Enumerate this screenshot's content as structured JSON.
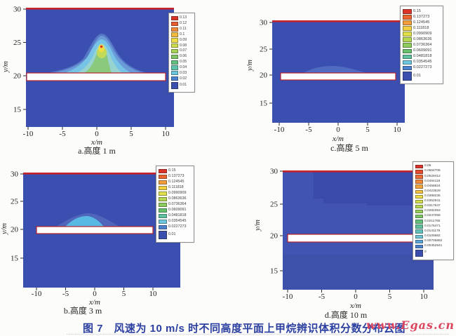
{
  "figure": {
    "caption": "图 7　风速为 10 m/s 时不同高度平面上甲烷辨识体积分数分布云图",
    "watermark": "www.Egas.cn"
  },
  "colors": {
    "plot_background": "#3b4fb0",
    "plot_background_d": "#4154b2",
    "dark_region_d": "#3a4aab",
    "obstacle_bar_fill": "#ffffff",
    "obstacle_bar_border": "#b3262e",
    "top_boundary_line": "#c5232b",
    "caption_text": "#2b3fa0",
    "watermark_text": "#da4660"
  },
  "panels": [
    {
      "id": "a",
      "caption": "a.高度 1 m",
      "xlabel": "x/m",
      "ylabel": "y/m",
      "x_ticks": [
        "-10",
        "-5",
        "0",
        "5",
        "10"
      ],
      "y_ticks": [
        "30",
        "25",
        "20",
        "15"
      ],
      "legend": {
        "values": [
          "0.13",
          "0.12",
          "0.11",
          "0.1",
          "0.09",
          "0.08",
          "0.07",
          "0.06",
          "0.05",
          "0.04",
          "0.03",
          "0.02",
          "0.01"
        ],
        "colors": [
          "#dd3227",
          "#e95c2f",
          "#f08a39",
          "#f2bb3e",
          "#f0dc45",
          "#cede4c",
          "#a6d356",
          "#80c763",
          "#63c07e",
          "#5ec3ab",
          "#6ac6de",
          "#4b82cd",
          "#3a4fae"
        ]
      }
    },
    {
      "id": "b",
      "caption": "b.高度 3 m",
      "xlabel": "x/m",
      "ylabel": "y/m",
      "x_ticks": [
        "-10",
        "-5",
        "0",
        "5",
        "10"
      ],
      "y_ticks": [
        "30",
        "25",
        "20",
        "15"
      ],
      "legend": {
        "values": [
          "0.15",
          "0.137273",
          "0.124545",
          "0.111818",
          "0.0990909",
          "0.0863636",
          "0.0736364",
          "0.0609091",
          "0.0481818",
          "0.0354545",
          "0.0227273",
          "0.01"
        ],
        "colors": [
          "#dd3227",
          "#ea642f",
          "#f29c3b",
          "#f2d03f",
          "#e0e04a",
          "#b5d851",
          "#8ccb5c",
          "#67c06c",
          "#5ec2a0",
          "#6cc7de",
          "#4b82cd",
          "#3a4fae"
        ]
      }
    },
    {
      "id": "c",
      "caption": "c.高度 5 m",
      "xlabel": "x/m",
      "ylabel": "y/m",
      "x_ticks": [
        "-10",
        "-5",
        "0",
        "5",
        "10"
      ],
      "y_ticks": [
        "30",
        "25",
        "20",
        "15"
      ],
      "legend": {
        "values": [
          "0.15",
          "0.137273",
          "0.124545",
          "0.111818",
          "0.0990909",
          "0.0863636",
          "0.0736364",
          "0.0609091",
          "0.0481818",
          "0.0354545",
          "0.0227273",
          "0.01"
        ],
        "colors": [
          "#dd3227",
          "#ea642f",
          "#f29c3b",
          "#f2d03f",
          "#e0e04a",
          "#b5d851",
          "#8ccb5c",
          "#67c06c",
          "#5ec2a0",
          "#6cc7de",
          "#4b82cd",
          "#3a4fae"
        ]
      }
    },
    {
      "id": "d",
      "caption": "d.高度 10 m",
      "xlabel": "x/m",
      "ylabel": "y/m",
      "x_ticks": [
        "-10",
        "-5",
        "0",
        "5",
        "10"
      ],
      "y_ticks": [
        "30",
        "25",
        "20",
        "15"
      ],
      "legend": {
        "values": [
          "0.06",
          "0.0564706",
          "0.0529412",
          "0.0494118",
          "0.0458824",
          "0.0423529",
          "0.0388235",
          "0.0352941",
          "0.0317647",
          "0.0282353",
          "0.0247059",
          "0.0211765",
          "0.0176471",
          "0.0141176",
          "0.0105882",
          "0.00705882",
          "0.00352941",
          "0"
        ],
        "colors": [
          "#dd3227",
          "#e74b2c",
          "#ee6a33",
          "#f18838",
          "#f3a53c",
          "#f3c340",
          "#eedd45",
          "#d3de4a",
          "#b5d851",
          "#96cf59",
          "#79c663",
          "#63c07d",
          "#5cc29b",
          "#62c4bd",
          "#6bc6da",
          "#57a5da",
          "#4b82cd",
          "#3a4fae"
        ]
      }
    }
  ],
  "chart_data": [
    {
      "type": "contour",
      "subplot": "a",
      "title": "a.高度 1 m",
      "xlabel": "x/m",
      "ylabel": "y/m",
      "xlim": [
        -10.5,
        11.5
      ],
      "ylim": [
        12.3,
        30.3
      ],
      "x_ticks": [
        -10,
        -5,
        0,
        5,
        10
      ],
      "y_ticks": [
        15,
        20,
        25,
        30
      ],
      "levels": [
        0.01,
        0.02,
        0.03,
        0.04,
        0.05,
        0.06,
        0.07,
        0.08,
        0.09,
        0.1,
        0.11,
        0.12,
        0.13
      ],
      "background_level": 0.01,
      "obstacle_bar": {
        "x": [
          -10,
          10
        ],
        "y": [
          19.6,
          20.7
        ]
      },
      "plume": {
        "apex": [
          0.7,
          25.5
        ],
        "base_x": [
          -7,
          6
        ],
        "base_y": 20.7,
        "peak_value": 0.13,
        "peak_location": [
          0.7,
          24.6
        ],
        "note": "bell-shaped plume above bar: blue→cyan→green→yellow core with small red maximum"
      }
    },
    {
      "type": "contour",
      "subplot": "b",
      "title": "b.高度 3 m",
      "xlabel": "x/m",
      "ylabel": "y/m",
      "xlim": [
        -11,
        16.5
      ],
      "ylim": [
        11.5,
        30.2
      ],
      "x_ticks": [
        -10,
        -5,
        0,
        5,
        10
      ],
      "y_ticks": [
        15,
        20,
        25,
        30
      ],
      "levels": [
        0.01,
        0.0227273,
        0.0354545,
        0.0481818,
        0.0609091,
        0.0736364,
        0.0863636,
        0.0990909,
        0.111818,
        0.124545,
        0.137273,
        0.15
      ],
      "background_level": 0.01,
      "obstacle_bar": {
        "x": [
          -10,
          10
        ],
        "y": [
          19.6,
          20.7
        ]
      },
      "plume": {
        "apex": [
          -1,
          22.6
        ],
        "base_x": [
          -6.5,
          4.5
        ],
        "base_y": 20.7,
        "peak_value": 0.0481818,
        "note": "small light-blue hump above bar, max level ~0.048"
      }
    },
    {
      "type": "contour",
      "subplot": "c",
      "title": "c.高度 5 m",
      "xlabel": "x/m",
      "ylabel": "y/m",
      "xlim": [
        -11.2,
        12.5
      ],
      "ylim": [
        11,
        30.4
      ],
      "x_ticks": [
        -10,
        -5,
        0,
        5,
        10
      ],
      "y_ticks": [
        15,
        20,
        25,
        30
      ],
      "levels": [
        0.01,
        0.0227273,
        0.0354545,
        0.0481818,
        0.0609091,
        0.0736364,
        0.0863636,
        0.0990909,
        0.111818,
        0.124545,
        0.137273,
        0.15
      ],
      "background_level": 0.01,
      "obstacle_bar": {
        "x": [
          -10,
          10
        ],
        "y": [
          19.6,
          20.7
        ]
      },
      "plume": {
        "apex": [
          -1.5,
          21.4
        ],
        "base_x": [
          -6.5,
          4
        ],
        "base_y": 20.7,
        "peak_value": 0.0227273,
        "note": "very faint low bump just above bar"
      }
    },
    {
      "type": "contour",
      "subplot": "d",
      "title": "d.高度 10 m",
      "xlabel": "x/m",
      "ylabel": "y/m",
      "xlim": [
        -10.7,
        11.5
      ],
      "ylim": [
        12.2,
        30.2
      ],
      "x_ticks": [
        -10,
        -5,
        0,
        5,
        10
      ],
      "y_ticks": [
        15,
        20,
        25,
        30
      ],
      "levels": [
        0,
        0.00352941,
        0.00705882,
        0.0105882,
        0.0141176,
        0.0176471,
        0.0211765,
        0.0247059,
        0.0282353,
        0.0317647,
        0.0352941,
        0.0388235,
        0.0423529,
        0.0458824,
        0.0494118,
        0.0529412,
        0.0564706,
        0.06
      ],
      "background_level": 0.00352941,
      "obstacle_bar": {
        "x": [
          -10,
          8.7
        ],
        "y": [
          19.6,
          20.7
        ]
      },
      "plume": {
        "apex": null,
        "base_x": null,
        "base_y": null,
        "peak_value": 0.00705882,
        "note": "nearly uniform field; slightly darker (lower) stepped region in upper area x > -5.5, y > 24.7"
      }
    }
  ]
}
